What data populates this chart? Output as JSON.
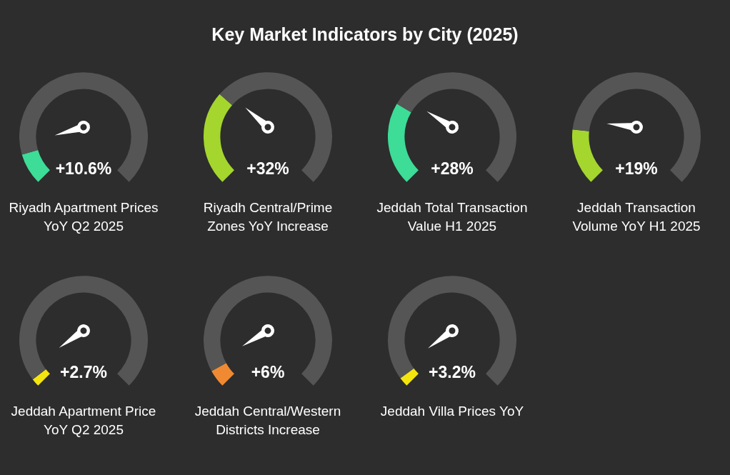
{
  "chart_data": [
    {
      "type": "other",
      "title": "Key Market Indicators by City (2025)"
    },
    {
      "type": "other",
      "title": "Riyadh Apartment Prices YoY Q2 2025",
      "values": [
        10.6
      ],
      "value_labels": [
        "+10.6%"
      ],
      "colors": [
        "#3ddc97"
      ]
    },
    {
      "type": "other",
      "title": "Riyadh Central/Prime Zones YoY Increase",
      "values": [
        32
      ],
      "value_labels": [
        "+32%"
      ],
      "colors": [
        "#a4d62e"
      ]
    },
    {
      "type": "other",
      "title": "Jeddah Total Transaction Value H1 2025",
      "values": [
        28
      ],
      "value_labels": [
        "+28%"
      ],
      "colors": [
        "#3ddc97"
      ]
    },
    {
      "type": "other",
      "title": "Jeddah Transaction Volume YoY H1 2025",
      "values": [
        19
      ],
      "value_labels": [
        "+19%"
      ],
      "colors": [
        "#a4d62e"
      ]
    },
    {
      "type": "other",
      "title": "Jeddah Apartment Price YoY Q2 2025",
      "values": [
        2.7
      ],
      "value_labels": [
        "+2.7%"
      ],
      "colors": [
        "#f5e50e"
      ]
    },
    {
      "type": "other",
      "title": "Jeddah Central/Western Districts Increase",
      "values": [
        6
      ],
      "value_labels": [
        "+6%"
      ],
      "colors": [
        "#f08a32"
      ]
    },
    {
      "type": "other",
      "title": "Jeddah Villa Prices YoY",
      "values": [
        3.2
      ],
      "value_labels": [
        "+3.2%"
      ],
      "colors": [
        "#f5e50e"
      ]
    }
  ]
}
